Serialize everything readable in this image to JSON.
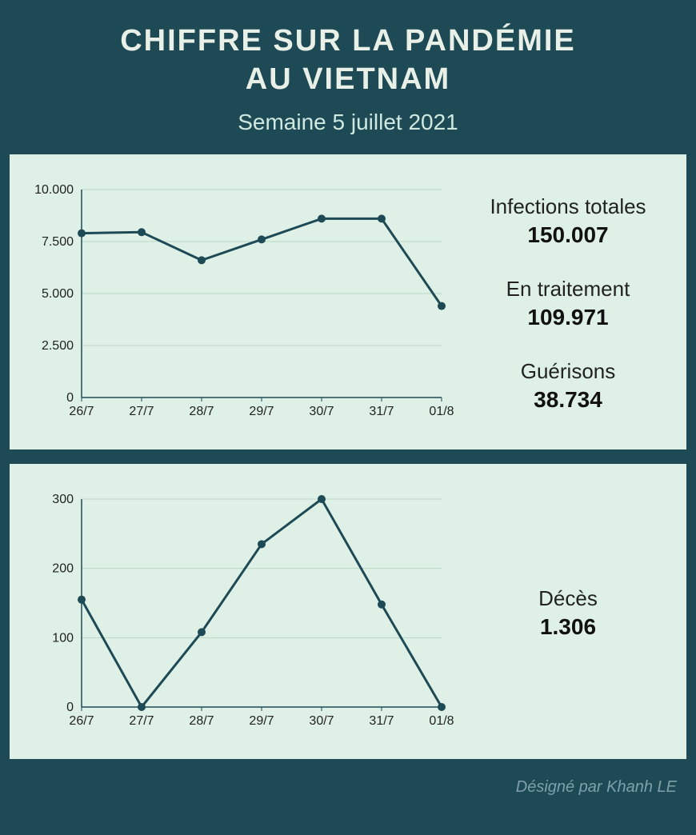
{
  "header": {
    "title_line1": "CHIFFRE SUR LA PANDÉMIE",
    "title_line2": "AU VIETNAM",
    "subtitle": "Semaine 5 juillet 2021"
  },
  "chart1": {
    "type": "line",
    "categories": [
      "26/7",
      "27/7",
      "28/7",
      "29/7",
      "30/7",
      "31/7",
      "01/8"
    ],
    "values": [
      7900,
      7950,
      6600,
      7600,
      8600,
      8600,
      4400
    ],
    "ylim": [
      0,
      10000
    ],
    "ytick_step": 2500,
    "ytick_labels": [
      "0",
      "2.500",
      "5.000",
      "7.500",
      "10.000"
    ],
    "line_color": "#1e4a56",
    "line_width": 3,
    "marker_radius": 5,
    "background_color": "#dff1e6",
    "axis_color": "#1e4a56",
    "grid_color": "#b8d6c4",
    "tick_fontsize": 16,
    "grid": true
  },
  "stats1": [
    {
      "label": "Infections totales",
      "value": "150.007"
    },
    {
      "label": "En traitement",
      "value": "109.971"
    },
    {
      "label": "Guérisons",
      "value": "38.734"
    }
  ],
  "chart2": {
    "type": "line",
    "categories": [
      "26/7",
      "27/7",
      "28/7",
      "29/7",
      "30/7",
      "31/7",
      "01/8"
    ],
    "values": [
      155,
      0,
      108,
      235,
      300,
      148,
      0
    ],
    "ylim": [
      0,
      300
    ],
    "ytick_step": 100,
    "ytick_labels": [
      "0",
      "100",
      "200",
      "300"
    ],
    "line_color": "#1e4a56",
    "line_width": 3,
    "marker_radius": 5,
    "background_color": "#dff1e6",
    "axis_color": "#1e4a56",
    "grid_color": "#b8d6c4",
    "tick_fontsize": 16,
    "grid": true
  },
  "stats2": [
    {
      "label": "Décès",
      "value": "1.306"
    }
  ],
  "footer": {
    "credit": "Désigné par Khanh LE"
  }
}
